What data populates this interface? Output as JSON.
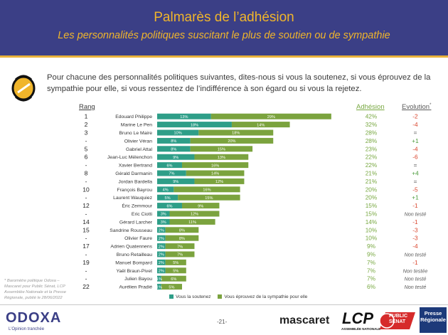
{
  "header": {
    "title": "Palmarès de l’adhésion",
    "subtitle": "Les personnalités politiques suscitant le plus de soutien ou de sympathie"
  },
  "question": "Pour chacune des personnalités politiques suivantes, dites-nous si vous la soutenez, si vous éprouvez de la sympathie pour elle, si vous ressentez de l’indifférence à son égard ou si vous la rejetez.",
  "table_headers": {
    "rang": "Rang",
    "adhesion": "Adhésion",
    "evolution": "Evolution",
    "evolution_mark": "*"
  },
  "chart_data": {
    "type": "bar",
    "orientation": "horizontal",
    "stacked": true,
    "categories": [
      "Edouard Philippe",
      "Marine Le Pen",
      "Bruno Le Maire",
      "Olivier Véran",
      "Gabriel Attal",
      "Jean-Luc Mélenchon",
      "Xavier Bertrand",
      "Gérald Darmanin",
      "Jordan Bardella",
      "François Bayrou",
      "Laurent Wauquiez",
      "Éric Zemmour",
      "Eric Ciotti",
      "Gérard Larcher",
      "Sandrine Rousseau",
      "Olivier Faure",
      "Adrien Quatennens",
      "Bruno Retailleau",
      "Manuel Bompard",
      "Yaël Braun-Pivet",
      "Julien Bayou",
      "Aurélien Pradié"
    ],
    "ranks": [
      "1",
      "2",
      "3",
      "-",
      "5",
      "6",
      "-",
      "8",
      "-",
      "10",
      "-",
      "12",
      "-",
      "14",
      "15",
      "-",
      "17",
      "-",
      "19",
      "-",
      "-",
      "22"
    ],
    "series": [
      {
        "name": "Vous la soutenez",
        "color": "#2e9e88",
        "values": [
          13,
          18,
          10,
          8,
          8,
          9,
          6,
          7,
          9,
          4,
          5,
          6,
          3,
          3,
          2,
          2,
          2,
          2,
          2,
          2,
          1,
          1
        ]
      },
      {
        "name": "Vous éprouvez de la sympathie pour elle",
        "color": "#7ba33e",
        "values": [
          29,
          14,
          18,
          20,
          15,
          13,
          16,
          14,
          12,
          16,
          15,
          9,
          12,
          11,
          8,
          8,
          7,
          7,
          5,
          5,
          6,
          5
        ]
      }
    ],
    "data_labels": {
      "Vous la soutenez": [
        "13%",
        "18%",
        "10%",
        "8%",
        "8%",
        "9%",
        "6%",
        "7%",
        "9%",
        "4%",
        "5%",
        "6%",
        "3%",
        "3%",
        "2%",
        "2%",
        "2%",
        "2%",
        "2%",
        "2%",
        "1%",
        "1%"
      ],
      "Vous éprouvez de la sympathie pour elle": [
        "29%",
        "14%",
        "18%",
        "20%",
        "15%",
        "13%",
        "16%",
        "14%",
        "12%",
        "16%",
        "15%",
        "9%",
        "12%",
        "11%",
        "8%",
        "8%",
        "7%",
        "7%",
        "5%",
        "5%",
        "6%",
        "5%"
      ]
    },
    "adhesion": [
      "42%",
      "32%",
      "28%",
      "28%",
      "23%",
      "22%",
      "22%",
      "21%",
      "21%",
      "20%",
      "20%",
      "15%",
      "15%",
      "14%",
      "10%",
      "10%",
      "9%",
      "9%",
      "7%",
      "7%",
      "7%",
      "6%"
    ],
    "evolution": [
      "-2",
      "-4",
      "=",
      "+1",
      "-4",
      "-6",
      "=",
      "+4",
      "=",
      "-5",
      "+1",
      "-1",
      "Non testé",
      "-1",
      "-3",
      "-3",
      "-4",
      "Non testé",
      "-1",
      "Non testée",
      "Non testé",
      "Non testé"
    ],
    "evolution_colors": {
      "negative": "#d9432b",
      "positive": "#4a9a3a",
      "neutral": "#5a5a5a"
    },
    "xlim": [
      0,
      42
    ],
    "legend_position": "bottom"
  },
  "footnote": "* Baromètre politique Odoxa – Mascaret pour Public Sénat, LCP Assemblée Nationale et la Presse Régionale, publié le 28/06/2022",
  "footer": {
    "odoxa": "ODOXA",
    "odoxa_tagline": "L’Opinion tranchée",
    "page": "-21-",
    "mascaret": "mascaret",
    "lcp": "LCP",
    "lcp_sub": "ASSEMBLÉE NATIONALE",
    "public_senat_1": "PUBLIC",
    "public_senat_2": "SÉNAT",
    "presse_1": "Presse",
    "presse_2": "Régionale"
  },
  "colors": {
    "header_bg": "#3b3f86",
    "title": "#f0b52b",
    "soutien": "#2e9e88",
    "sympathie": "#7ba33e",
    "adhesion": "#78a841"
  }
}
